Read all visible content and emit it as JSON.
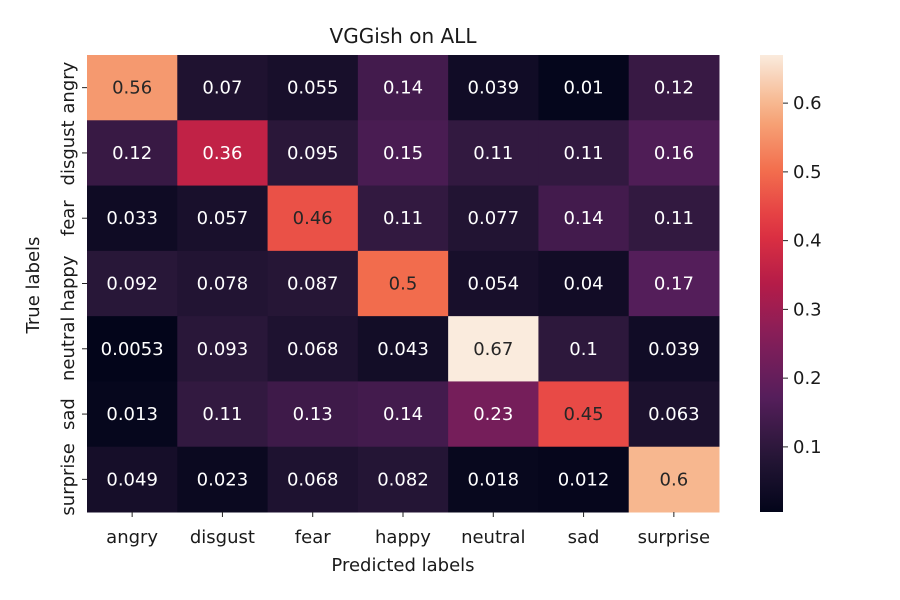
{
  "chart_data": {
    "type": "heatmap",
    "title": "VGGish on ALL",
    "xlabel": "Predicted labels",
    "ylabel": "True labels",
    "x_categories": [
      "angry",
      "disgust",
      "fear",
      "happy",
      "neutral",
      "sad",
      "surprise"
    ],
    "y_categories": [
      "angry",
      "disgust",
      "fear",
      "happy",
      "neutral",
      "sad",
      "surprise"
    ],
    "values": [
      [
        0.56,
        0.07,
        0.055,
        0.14,
        0.039,
        0.01,
        0.12
      ],
      [
        0.12,
        0.36,
        0.095,
        0.15,
        0.11,
        0.11,
        0.16
      ],
      [
        0.033,
        0.057,
        0.46,
        0.11,
        0.077,
        0.14,
        0.11
      ],
      [
        0.092,
        0.078,
        0.087,
        0.5,
        0.054,
        0.04,
        0.17
      ],
      [
        0.0053,
        0.093,
        0.068,
        0.043,
        0.67,
        0.1,
        0.039
      ],
      [
        0.013,
        0.11,
        0.13,
        0.14,
        0.23,
        0.45,
        0.063
      ],
      [
        0.049,
        0.023,
        0.068,
        0.082,
        0.018,
        0.012,
        0.6
      ]
    ],
    "value_labels": [
      [
        "0.56",
        "0.07",
        "0.055",
        "0.14",
        "0.039",
        "0.01",
        "0.12"
      ],
      [
        "0.12",
        "0.36",
        "0.095",
        "0.15",
        "0.11",
        "0.11",
        "0.16"
      ],
      [
        "0.033",
        "0.057",
        "0.46",
        "0.11",
        "0.077",
        "0.14",
        "0.11"
      ],
      [
        "0.092",
        "0.078",
        "0.087",
        "0.5",
        "0.054",
        "0.04",
        "0.17"
      ],
      [
        "0.0053",
        "0.093",
        "0.068",
        "0.043",
        "0.67",
        "0.1",
        "0.039"
      ],
      [
        "0.013",
        "0.11",
        "0.13",
        "0.14",
        "0.23",
        "0.45",
        "0.063"
      ],
      [
        "0.049",
        "0.023",
        "0.068",
        "0.082",
        "0.018",
        "0.012",
        "0.6"
      ]
    ],
    "colormap": "rocket",
    "vmin": 0.0053,
    "vmax": 0.67,
    "colorbar": {
      "ticks": [
        0.1,
        0.2,
        0.3,
        0.4,
        0.5,
        0.6
      ],
      "tick_labels": [
        "0.1",
        "0.2",
        "0.3",
        "0.4",
        "0.5",
        "0.6"
      ],
      "position": "right"
    },
    "grid": false
  }
}
